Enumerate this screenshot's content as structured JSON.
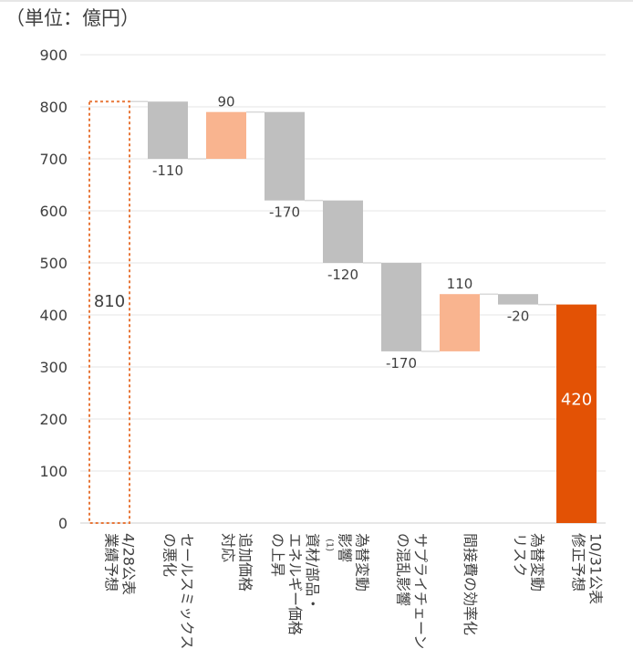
{
  "unit_label": "（単位：億円）",
  "chart_data": {
    "type": "waterfall",
    "title": "",
    "xlabel": "",
    "ylabel": "",
    "ylim": [
      0,
      900
    ],
    "yticks": [
      0,
      100,
      200,
      300,
      400,
      500,
      600,
      700,
      800,
      900
    ],
    "grid": true,
    "legend": "none",
    "colors": {
      "start_outline": "#e8783a",
      "decrease": "#bfbfbf",
      "increase": "#f9b48f",
      "total": "#e35205",
      "connector": "#d9d9d9",
      "grid": "#e4e4e4",
      "axis_text": "#404040",
      "total_label": "#ffffff"
    },
    "categories": [
      "4/28公表 業績予想",
      "セールスミックスの悪化",
      "追加価格対応",
      "資材/部品・エネルギー価格の上昇",
      "為替変動影響(1)",
      "サプライチェーンの混乱影響",
      "間接費の効率化",
      "為替変動リスク",
      "10/31公表 修正予想"
    ],
    "category_lines": [
      [
        "4/28公表",
        "業績予想"
      ],
      [
        "セールスミックス",
        "の悪化"
      ],
      [
        "追加価格",
        "対応"
      ],
      [
        "資材/部品・",
        "エネルギー価格",
        "の上昇"
      ],
      [
        "為替変動",
        "影響"
      ],
      [
        "サプライチェーン",
        "の混乱影響"
      ],
      [
        "間接費の効率化"
      ],
      [
        "為替変動",
        "リスク"
      ],
      [
        "10/31公表",
        "修正予想"
      ]
    ],
    "footnote_marker": "(1)",
    "steps": [
      {
        "kind": "start",
        "value": 810,
        "label": "810"
      },
      {
        "kind": "delta",
        "value": -110,
        "label": "-110"
      },
      {
        "kind": "delta",
        "value": 90,
        "label": "90"
      },
      {
        "kind": "delta",
        "value": -170,
        "label": "-170"
      },
      {
        "kind": "delta",
        "value": -120,
        "label": "-120"
      },
      {
        "kind": "delta",
        "value": -170,
        "label": "-170"
      },
      {
        "kind": "delta",
        "value": 110,
        "label": "110"
      },
      {
        "kind": "delta",
        "value": -20,
        "label": "-20"
      },
      {
        "kind": "total",
        "value": 420,
        "label": "420"
      }
    ]
  }
}
